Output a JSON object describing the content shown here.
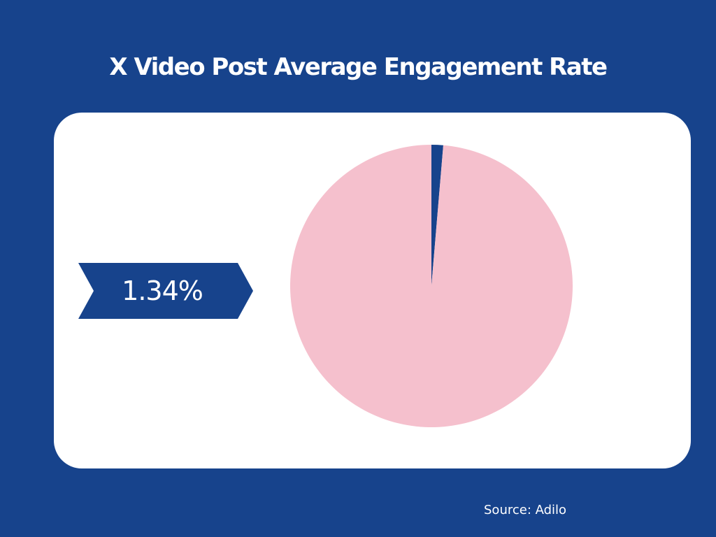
{
  "colors": {
    "background": "#17438c",
    "card": "#ffffff",
    "accent": "#17438c",
    "remainder": "#f5c0cd",
    "text_light": "#ffffff"
  },
  "title": "X Video Post Average Engagement Rate",
  "badge": {
    "value": "1.34%"
  },
  "source": "Source: Adilo",
  "chart_data": {
    "type": "pie",
    "title": "X Video Post Average Engagement Rate",
    "slices": [
      {
        "label": "1.34%",
        "value": 1.34,
        "color": "#17438c"
      },
      {
        "label": "",
        "value": 98.66,
        "color": "#f5c0cd"
      }
    ]
  }
}
